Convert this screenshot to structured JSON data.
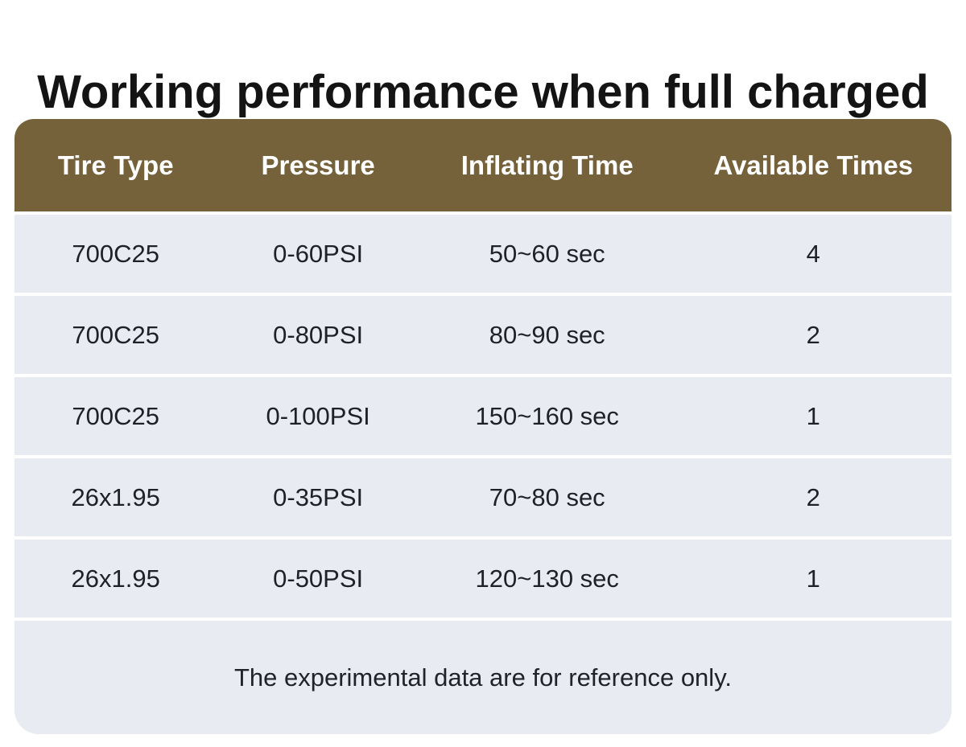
{
  "page": {
    "title": "Working performance when full charged"
  },
  "chart_data": {
    "type": "table",
    "title": "Working performance when full charged",
    "columns": [
      "Tire Type",
      "Pressure",
      "Inflating Time",
      "Available Times"
    ],
    "rows": [
      [
        "700C25",
        "0-60PSI",
        "50~60 sec",
        "4"
      ],
      [
        "700C25",
        "0-80PSI",
        "80~90 sec",
        "2"
      ],
      [
        "700C25",
        "0-100PSI",
        "150~160 sec",
        "1"
      ],
      [
        "26x1.95",
        "0-35PSI",
        "70~80 sec",
        "2"
      ],
      [
        "26x1.95",
        "0-50PSI",
        "120~130 sec",
        "1"
      ]
    ],
    "footnote": "The experimental data are for reference only."
  },
  "colors": {
    "header_bg": "#75613a",
    "header_text": "#ffffff",
    "row_bg": "#e8ebf1",
    "text": "#1e2126"
  }
}
